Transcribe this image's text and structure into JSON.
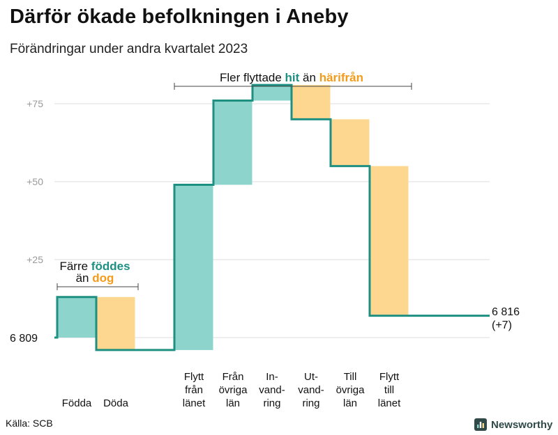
{
  "header": {
    "title": "Därför ökade befolkningen i Aneby",
    "subtitle": "Förändringar under andra kvartalet 2023"
  },
  "footer": {
    "source": "Källa: SCB",
    "brand": "Newsworthy"
  },
  "chart_data": {
    "type": "bar",
    "variant": "waterfall",
    "base_label": "6  809",
    "base_value": 0,
    "end_label": {
      "value": "6 816",
      "change": "(+7)"
    },
    "ylim": [
      -5,
      90
    ],
    "yticks": [
      {
        "value": 25,
        "label": "+25"
      },
      {
        "value": 50,
        "label": "+50"
      },
      {
        "value": 75,
        "label": "+75"
      }
    ],
    "grid": true,
    "colors": {
      "increase": "#8dd5cc",
      "decrease": "#fdd78f",
      "line": "#1e9082",
      "accent_increase": "#1e9082",
      "accent_decrease": "#f59b1a"
    },
    "categories": [
      {
        "label": [
          "Födda"
        ],
        "value": 13,
        "type": "increase"
      },
      {
        "label": [
          "Döda"
        ],
        "value": -17,
        "type": "decrease"
      },
      {
        "label": [
          "Flytt",
          "från",
          "länet"
        ],
        "value": 53,
        "type": "increase"
      },
      {
        "label": [
          "Från",
          "övriga",
          "län"
        ],
        "value": 27,
        "type": "increase"
      },
      {
        "label": [
          "In-",
          "vand-",
          "ring"
        ],
        "value": 5,
        "type": "increase"
      },
      {
        "label": [
          "Ut-",
          "vand-",
          "ring"
        ],
        "value": -11,
        "type": "decrease"
      },
      {
        "label": [
          "Till",
          "övriga",
          "län"
        ],
        "value": -15,
        "type": "decrease"
      },
      {
        "label": [
          "Flytt",
          "till",
          "länet"
        ],
        "value": -48,
        "type": "decrease"
      }
    ],
    "annotations": [
      {
        "parts": [
          {
            "text": "Färre ",
            "style": "normal"
          },
          {
            "text": "föddes",
            "style": "increase"
          }
        ],
        "parts2": [
          {
            "text": "än ",
            "style": "normal"
          },
          {
            "text": "dog",
            "style": "decrease"
          }
        ]
      },
      {
        "parts": [
          {
            "text": "Fler flyttade ",
            "style": "normal"
          },
          {
            "text": "hit",
            "style": "increase"
          },
          {
            "text": "  än ",
            "style": "normal"
          },
          {
            "text": "härifrån",
            "style": "decrease"
          }
        ]
      }
    ]
  }
}
